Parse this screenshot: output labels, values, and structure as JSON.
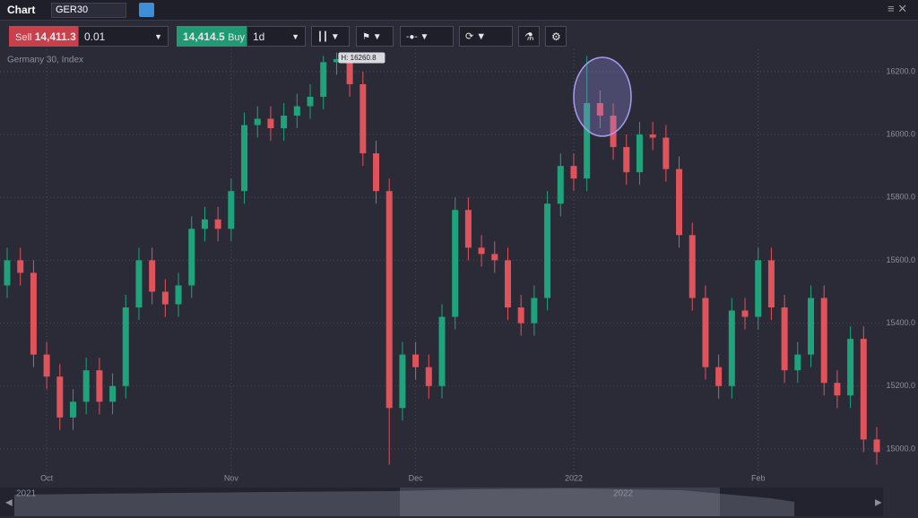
{
  "header": {
    "title": "Chart",
    "symbol": "GER30"
  },
  "toolbar": {
    "sell_label": "Sell",
    "sell_price": "14,411.3",
    "quantity": "0.01",
    "buy_price": "14,414.5",
    "buy_label": "Buy",
    "timeframe": "1d"
  },
  "chart_data": {
    "type": "candlestick",
    "title": "Germany 30, Index",
    "annotation": "H: 16260.8",
    "categories": [
      null,
      null,
      null,
      "Oct",
      null,
      null,
      null,
      null,
      null,
      null,
      null,
      null,
      null,
      null,
      null,
      null,
      null,
      "Nov",
      null,
      null,
      null,
      null,
      null,
      null,
      null,
      null,
      null,
      null,
      null,
      null,
      null,
      "Dec",
      null,
      null,
      null,
      null,
      null,
      null,
      null,
      null,
      null,
      null,
      null,
      "2022",
      null,
      null,
      null,
      null,
      null,
      null,
      null,
      null,
      null,
      null,
      null,
      null,
      null,
      "Feb",
      null,
      null,
      null,
      null,
      null,
      null,
      null,
      null,
      null
    ],
    "open": [
      15520,
      15600,
      15560,
      15300,
      15230,
      15100,
      15150,
      15250,
      15150,
      15200,
      15450,
      15600,
      15500,
      15460,
      15520,
      15700,
      15730,
      15700,
      15820,
      16030,
      16050,
      16020,
      16060,
      16090,
      16120,
      16230,
      16240,
      16160,
      15940,
      15820,
      15130,
      15300,
      15260,
      15200,
      15420,
      15760,
      15640,
      15620,
      15600,
      15450,
      15400,
      15480,
      15780,
      15900,
      15860,
      16100,
      16060,
      15960,
      15880,
      16000,
      15990,
      15890,
      15680,
      15480,
      15260,
      15200,
      15440,
      15420,
      15600,
      15450,
      15250,
      15300,
      15480,
      15210,
      15170,
      15350,
      15030
    ],
    "high": [
      15640,
      15640,
      15600,
      15340,
      15270,
      15190,
      15290,
      15290,
      15240,
      15490,
      15640,
      15640,
      15540,
      15560,
      15740,
      15770,
      15770,
      15860,
      16070,
      16090,
      16090,
      16100,
      16130,
      16160,
      16250,
      16261,
      16250,
      16200,
      15980,
      15860,
      15340,
      15340,
      15300,
      15460,
      15800,
      15800,
      15680,
      15660,
      15640,
      15490,
      15520,
      15820,
      15940,
      15940,
      16250,
      16140,
      16100,
      16000,
      16040,
      16040,
      16030,
      15930,
      15720,
      15520,
      15300,
      15480,
      15480,
      15640,
      15640,
      15490,
      15340,
      15520,
      15520,
      15250,
      15390,
      15390,
      15070
    ],
    "low": [
      15480,
      15520,
      15260,
      15190,
      15060,
      15060,
      15110,
      15110,
      15110,
      15160,
      15410,
      15460,
      15420,
      15420,
      15480,
      15660,
      15660,
      15660,
      15780,
      15990,
      15980,
      15980,
      16020,
      16050,
      16080,
      16190,
      16120,
      15900,
      15780,
      14950,
      15090,
      15220,
      15160,
      15160,
      15380,
      15600,
      15580,
      15560,
      15410,
      15360,
      15360,
      15440,
      15740,
      15820,
      15820,
      16020,
      15920,
      15840,
      15840,
      15950,
      15850,
      15640,
      15440,
      15220,
      15160,
      15160,
      15380,
      15380,
      15410,
      15210,
      15210,
      15260,
      15170,
      15130,
      15130,
      14990,
      14950
    ],
    "close": [
      15600,
      15560,
      15300,
      15230,
      15100,
      15150,
      15250,
      15150,
      15200,
      15450,
      15600,
      15500,
      15460,
      15520,
      15700,
      15730,
      15700,
      15820,
      16030,
      16050,
      16020,
      16060,
      16090,
      16120,
      16230,
      16240,
      16160,
      15940,
      15820,
      15130,
      15300,
      15260,
      15200,
      15420,
      15760,
      15640,
      15620,
      15600,
      15450,
      15400,
      15480,
      15780,
      15900,
      15860,
      16100,
      16060,
      15960,
      15880,
      16000,
      15990,
      15890,
      15680,
      15480,
      15260,
      15200,
      15440,
      15420,
      15600,
      15450,
      15250,
      15300,
      15480,
      15210,
      15170,
      15350,
      15030,
      14990
    ],
    "up_color": "#1fa37a",
    "down_color": "#e0535b",
    "ylim": [
      14880,
      16271
    ],
    "yticks": [
      {
        "value": 15000,
        "label": "15000.0"
      },
      {
        "value": 15200,
        "label": "15200.0"
      },
      {
        "value": 15400,
        "label": "15400.0"
      },
      {
        "value": 15600,
        "label": "15600.0"
      },
      {
        "value": 15800,
        "label": "15800.0"
      },
      {
        "value": 16000,
        "label": "16000.0"
      },
      {
        "value": 16200,
        "label": "16200.0"
      }
    ],
    "grid": true
  },
  "navigator": {
    "labels": [
      "2021",
      "2022"
    ]
  }
}
